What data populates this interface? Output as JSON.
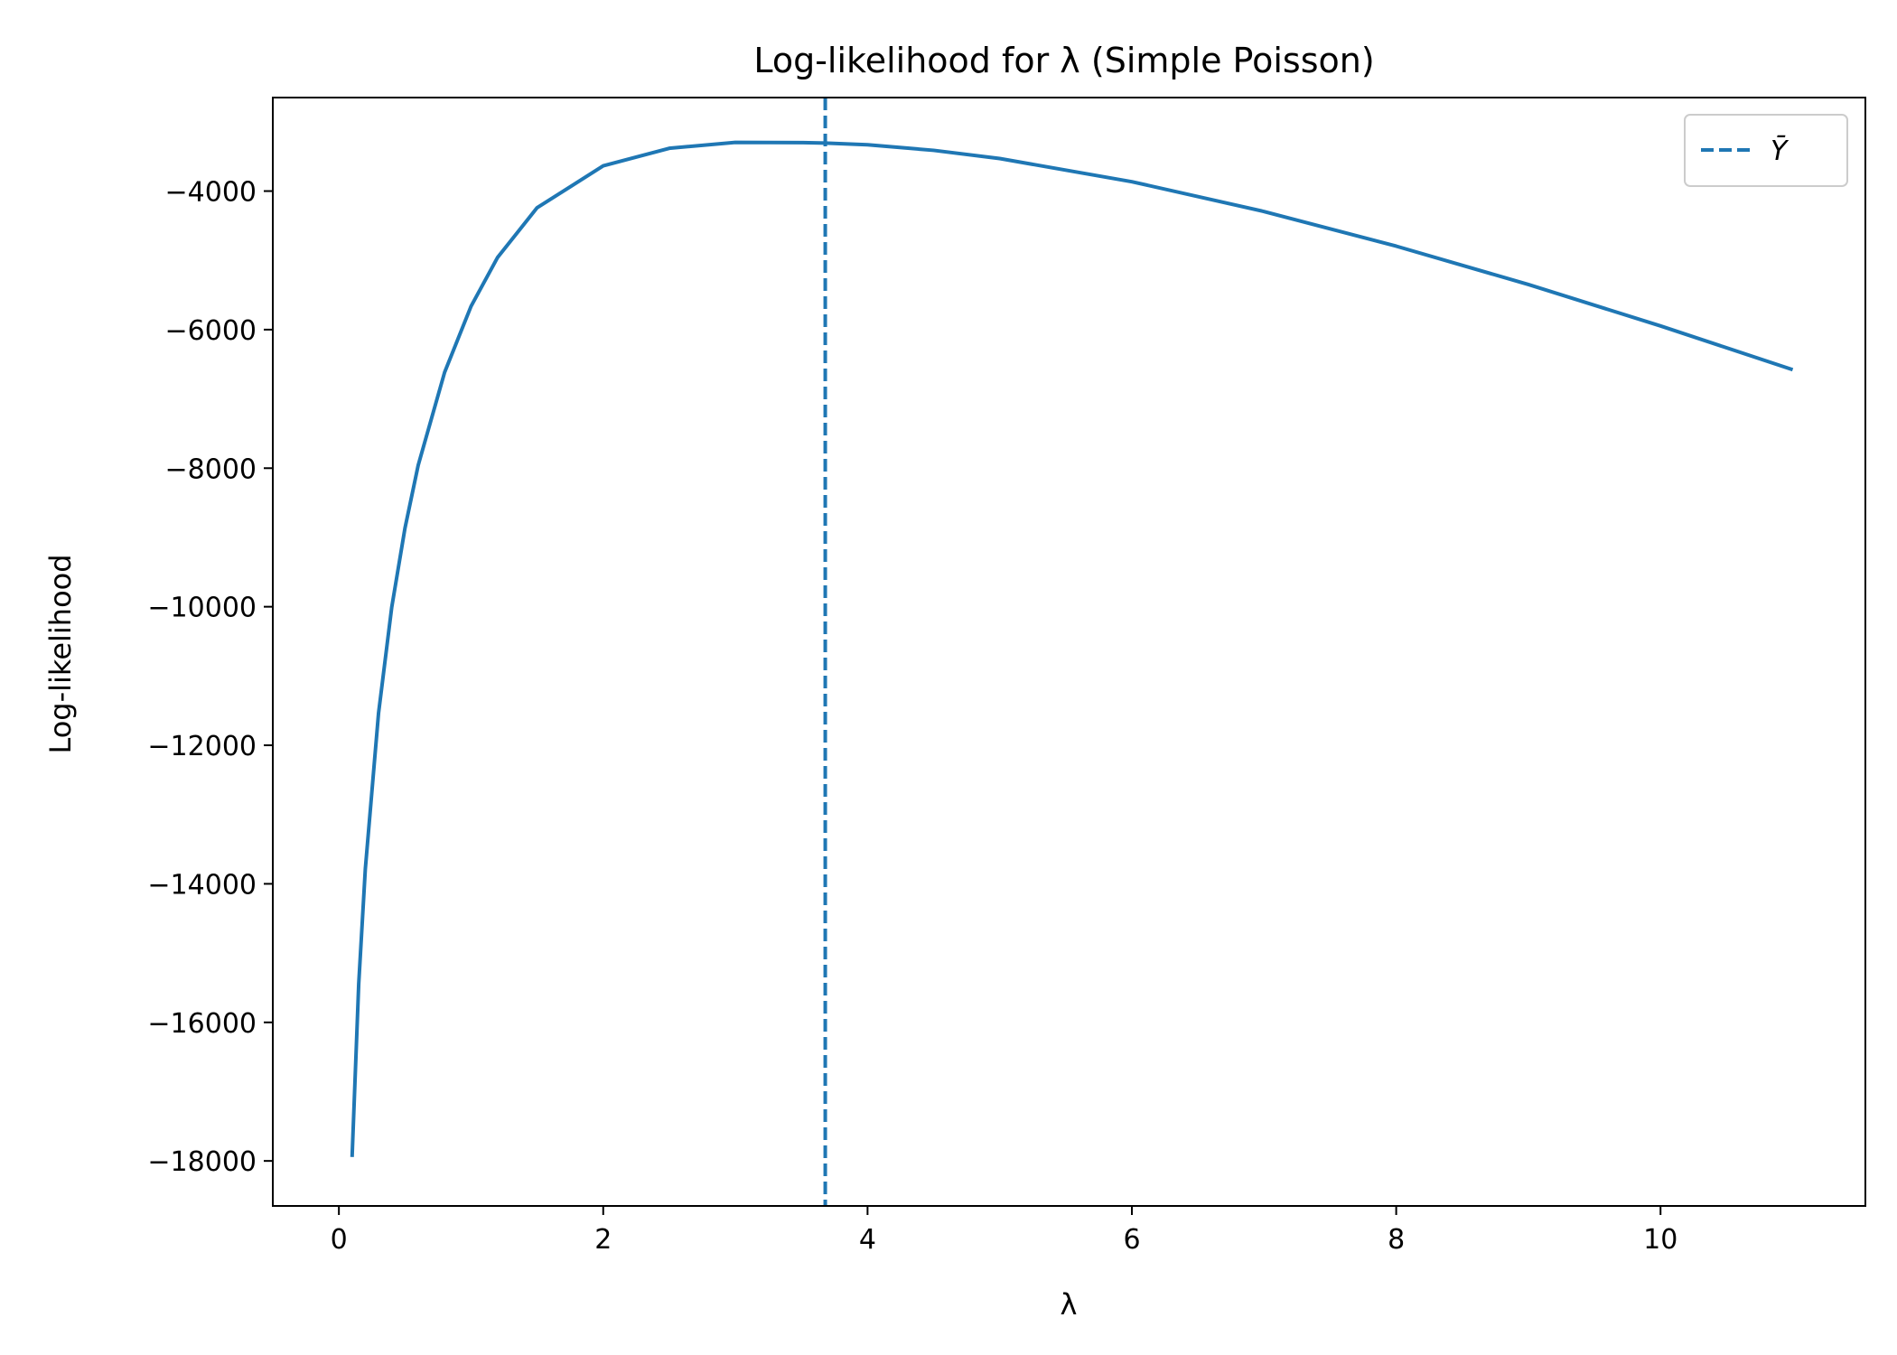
{
  "chart_data": {
    "type": "line",
    "title": "Log-likelihood for λ (Simple Poisson)",
    "xlabel": "λ",
    "ylabel": "Log-likelihood",
    "xlim": [
      -0.5,
      11.55
    ],
    "ylim": [
      -18650,
      -2650
    ],
    "xticks": [
      0,
      2,
      4,
      6,
      8,
      10
    ],
    "xtick_labels": [
      "0",
      "2",
      "4",
      "6",
      "8",
      "10"
    ],
    "yticks": [
      -18000,
      -16000,
      -14000,
      -12000,
      -10000,
      -8000,
      -6000,
      -4000
    ],
    "ytick_labels": [
      "−18000",
      "−16000",
      "−14000",
      "−12000",
      "−10000",
      "−8000",
      "−6000",
      "−4000"
    ],
    "grid": false,
    "legend_position": "upper-right",
    "series": [
      {
        "type": "line",
        "color": "#1f77b4",
        "x": [
          0.1,
          0.15,
          0.2,
          0.3,
          0.4,
          0.5,
          0.6,
          0.8,
          1.0,
          1.2,
          1.5,
          2.0,
          2.5,
          3.0,
          3.5,
          3.68,
          4.0,
          4.5,
          5.0,
          6.0,
          7.0,
          8.0,
          9.0,
          10.0,
          11.0
        ],
        "y": [
          -17943,
          -15446,
          -13787,
          -11537,
          -10005,
          -8866,
          -7958,
          -6616,
          -5663,
          -4960,
          -4240,
          -3636,
          -3382,
          -3297,
          -3300,
          -3307,
          -3332,
          -3412,
          -3530,
          -3865,
          -4295,
          -4795,
          -5349,
          -5947,
          -6578
        ]
      },
      {
        "type": "vline",
        "name": "Ȳ",
        "x": 3.68,
        "color": "#1f77b4",
        "style": "dashed"
      }
    ]
  }
}
